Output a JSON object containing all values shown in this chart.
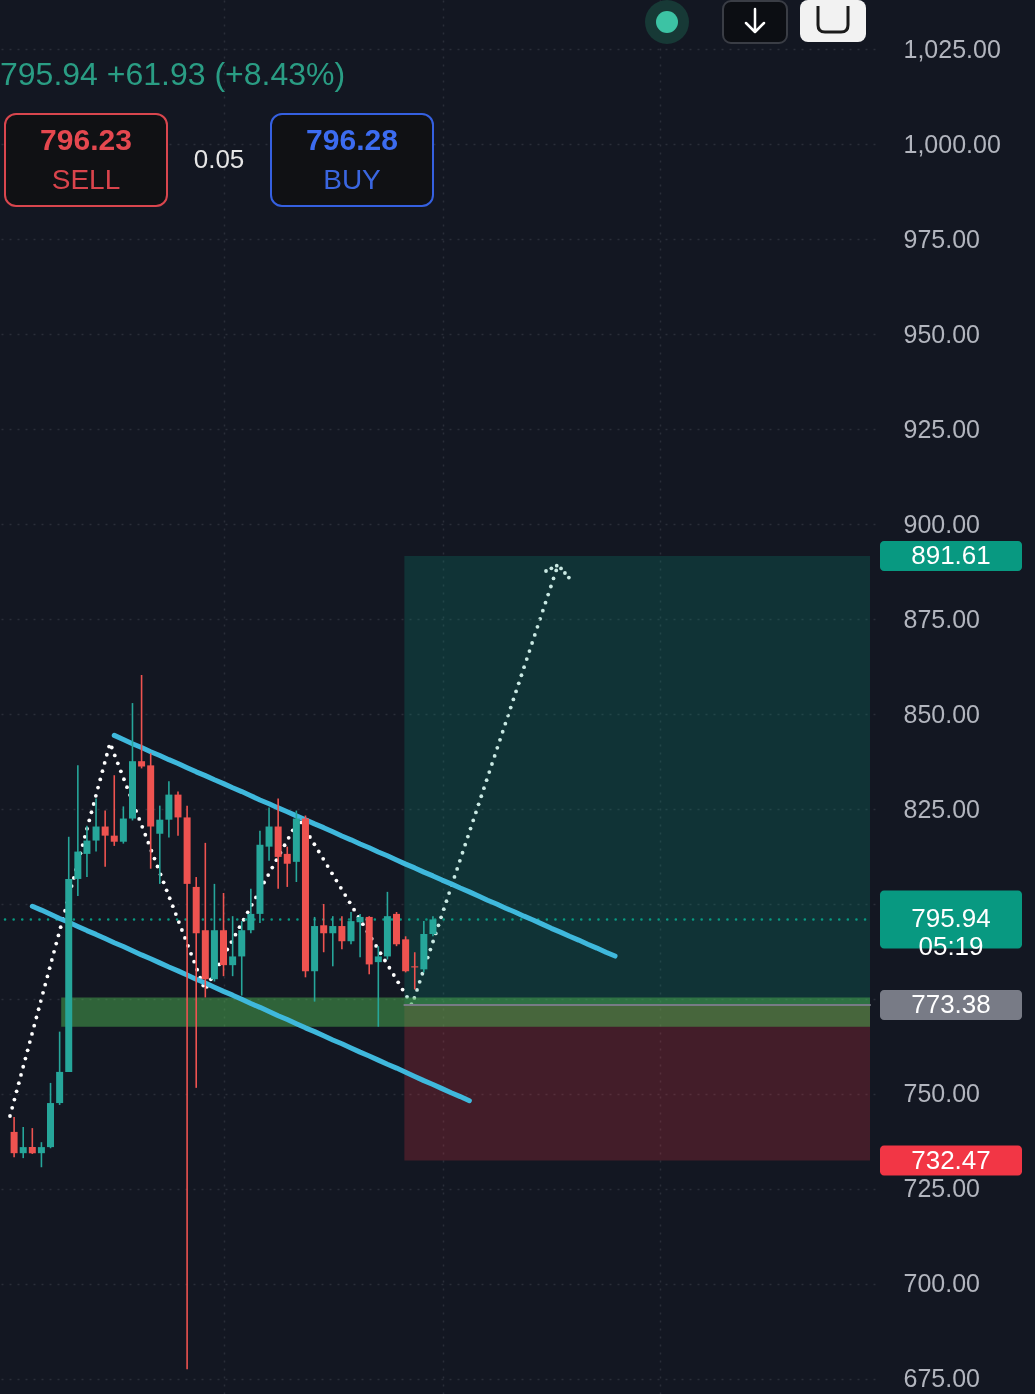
{
  "chart_data": {
    "type": "candlestick",
    "categories": [
      null,
      null,
      null,
      null,
      null,
      null,
      null,
      null,
      null,
      null,
      null,
      null,
      null,
      null,
      null,
      null,
      null,
      null,
      null,
      null,
      null,
      null,
      null,
      null,
      null,
      null,
      null,
      null,
      null,
      null,
      null,
      null,
      null,
      null,
      null,
      null,
      null,
      null,
      null,
      null,
      null,
      null,
      null,
      null,
      null,
      null,
      null,
      null,
      null,
      null,
      null,
      null,
      null,
      null,
      null,
      null,
      null,
      null,
      null,
      null,
      null,
      null,
      null,
      null,
      null,
      null,
      null,
      null,
      null,
      null,
      null,
      null,
      null,
      null,
      null,
      null,
      null,
      null,
      null,
      null,
      null,
      null,
      null,
      null,
      null,
      null,
      null,
      null,
      null,
      null,
      null,
      null,
      null,
      null
    ],
    "ohlc": [
      [
        740.0,
        743.9,
        733.3,
        734.4
      ],
      [
        734.4,
        741.3,
        733.1,
        736.0
      ],
      [
        736.0,
        741.0,
        734.2,
        734.4
      ],
      [
        734.4,
        737.3,
        730.7,
        736.0
      ],
      [
        736.0,
        752.9,
        735.7,
        747.6
      ],
      [
        747.6,
        766.4,
        747.1,
        755.8
      ],
      [
        755.8,
        817.7,
        755.8,
        806.6
      ],
      [
        806.6,
        836.5,
        802.1,
        813.8
      ],
      [
        813.2,
        820.6,
        807.1,
        816.7
      ],
      [
        816.7,
        827.8,
        813.8,
        820.4
      ],
      [
        820.4,
        824.6,
        809.8,
        818.0
      ],
      [
        818.0,
        833.9,
        815.3,
        816.4
      ],
      [
        816.4,
        825.7,
        815.9,
        822.5
      ],
      [
        822.5,
        852.9,
        822.0,
        837.6
      ],
      [
        837.6,
        860.3,
        835.7,
        836.2
      ],
      [
        836.5,
        839.7,
        809.3,
        820.4
      ],
      [
        818.5,
        825.9,
        805.3,
        822.2
      ],
      [
        822.2,
        832.3,
        817.5,
        828.8
      ],
      [
        828.8,
        829.6,
        818.0,
        822.8
      ],
      [
        822.8,
        825.9,
        677.5,
        805.3
      ],
      [
        804.5,
        807.1,
        751.6,
        792.3
      ],
      [
        793.1,
        816.1,
        775.4,
        780.2
      ],
      [
        780.2,
        805.3,
        779.6,
        793.1
      ],
      [
        793.1,
        802.9,
        781.0,
        783.9
      ],
      [
        783.9,
        796.8,
        781.0,
        786.2
      ],
      [
        786.2,
        795.5,
        775.9,
        793.1
      ],
      [
        793.1,
        804.0,
        792.3,
        797.4
      ],
      [
        797.4,
        819.3,
        795.0,
        815.6
      ],
      [
        815.1,
        825.4,
        811.4,
        820.4
      ],
      [
        820.4,
        827.8,
        804.0,
        812.4
      ],
      [
        813.2,
        815.1,
        804.5,
        810.6
      ],
      [
        811.1,
        824.6,
        805.8,
        822.5
      ],
      [
        822.5,
        823.3,
        780.7,
        782.3
      ],
      [
        782.3,
        796.6,
        774.3,
        794.2
      ],
      [
        794.4,
        800.0,
        787.3,
        792.3
      ],
      [
        792.3,
        796.8,
        783.6,
        794.2
      ],
      [
        794.2,
        796.8,
        788.1,
        790.2
      ],
      [
        790.2,
        797.9,
        789.4,
        795.5
      ],
      [
        795.2,
        797.4,
        786.0,
        796.6
      ],
      [
        796.6,
        796.8,
        781.5,
        784.1
      ],
      [
        784.7,
        788.9,
        767.7,
        786.2
      ],
      [
        786.2,
        803.2,
        785.4,
        796.8
      ],
      [
        797.4,
        797.9,
        788.9,
        789.4
      ],
      [
        790.7,
        791.5,
        782.0,
        782.3
      ],
      [
        783.6,
        787.3,
        777.5,
        783.3
      ],
      [
        782.8,
        795.5,
        782.0,
        792.1
      ],
      [
        792.1,
        796.8,
        791.5,
        795.94
      ],
      null,
      null,
      null,
      null,
      null,
      null,
      null,
      null,
      null,
      null,
      null,
      null,
      null,
      null,
      null,
      null,
      null,
      null,
      null,
      null,
      null,
      null,
      null,
      null,
      null,
      null,
      null,
      null,
      null,
      null,
      null,
      null,
      null,
      null,
      null,
      null,
      null,
      null,
      null,
      null,
      null,
      null,
      null,
      null,
      null,
      null,
      null
    ],
    "colors": [
      "#ef5350",
      "#26a69a",
      "#ef5350",
      "#26a69a",
      "#26a69a",
      "#26a69a",
      "#26a69a",
      "#26a69a",
      "#26a69a",
      "#26a69a",
      "#ef5350",
      "#ef5350",
      "#26a69a",
      "#26a69a",
      "#ef5350",
      "#ef5350",
      "#26a69a",
      "#26a69a",
      "#ef5350",
      "#ef5350",
      "#ef5350",
      "#ef5350",
      "#26a69a",
      "#ef5350",
      "#26a69a",
      "#26a69a",
      "#26a69a",
      "#26a69a",
      "#26a69a",
      "#ef5350",
      "#ef5350",
      "#26a69a",
      "#ef5350",
      "#26a69a",
      "#ef5350",
      "#26a69a",
      "#ef5350",
      "#26a69a",
      "#26a69a",
      "#ef5350",
      "#26a69a",
      "#26a69a",
      "#ef5350",
      "#ef5350",
      "#ef5350",
      "#26a69a",
      "#26a69a",
      null,
      null,
      null,
      null,
      null,
      null,
      null,
      null,
      null,
      null,
      null,
      null,
      null,
      null,
      null,
      null,
      null,
      null,
      null,
      null,
      null,
      null,
      null,
      null,
      null,
      null,
      null,
      null,
      null,
      null,
      null,
      null,
      null,
      null,
      null,
      null,
      null,
      null,
      null,
      null,
      null,
      null,
      null,
      null,
      null,
      null,
      null
    ],
    "series": [
      {
        "type": "line",
        "color": "#3fb8dc",
        "values": [
          null,
          null,
          null,
          null,
          null,
          null,
          null,
          null,
          null,
          null,
          null,
          844.4,
          843.3,
          842.2,
          841.2,
          840.1,
          839.1,
          838.0,
          837.0,
          835.9,
          834.8,
          833.8,
          832.7,
          831.7,
          830.6,
          829.6,
          828.5,
          827.4,
          826.4,
          825.3,
          824.3,
          823.2,
          822.2,
          821.1,
          820.1,
          819.0,
          817.9,
          816.9,
          815.8,
          814.8,
          813.7,
          812.7,
          811.6,
          810.5,
          809.5,
          808.4,
          807.4,
          806.3,
          805.3,
          804.2,
          803.2,
          802.1,
          801.0,
          800.0,
          798.9,
          797.9,
          796.8,
          795.8,
          794.7,
          793.6,
          792.6,
          791.5,
          790.5,
          789.4,
          788.4,
          787.3,
          786.3,
          null,
          null,
          null,
          null,
          null,
          null,
          null,
          null,
          null,
          null,
          null,
          null,
          null,
          null,
          null,
          null,
          null,
          null,
          null,
          null,
          null,
          null,
          null,
          null,
          null,
          null,
          null
        ]
      },
      {
        "type": "line",
        "color": "#3fb8dc",
        "values": [
          null,
          null,
          799.4,
          798.4,
          797.3,
          796.2,
          795.2,
          794.1,
          793.0,
          792.0,
          790.9,
          789.8,
          788.8,
          787.7,
          786.6,
          785.6,
          784.5,
          783.4,
          782.4,
          781.3,
          780.2,
          779.2,
          778.1,
          777.0,
          776.0,
          774.9,
          773.8,
          772.8,
          771.7,
          770.6,
          769.6,
          768.5,
          767.4,
          766.4,
          765.3,
          764.2,
          763.2,
          762.1,
          761.0,
          760.0,
          758.9,
          757.8,
          756.8,
          755.7,
          754.6,
          753.5,
          752.5,
          751.4,
          750.3,
          749.3,
          748.2,
          null,
          null,
          null,
          null,
          null,
          null,
          null,
          null,
          null,
          null,
          null,
          null,
          null,
          null,
          null,
          null,
          null,
          null,
          null,
          null,
          null,
          null,
          null,
          null,
          null,
          null,
          null,
          null,
          null,
          null,
          null,
          null,
          null,
          null,
          null,
          null,
          null,
          null,
          null,
          null,
          null,
          null,
          null
        ]
      }
    ],
    "ylim": [
      671,
      1038
    ],
    "yticks": [
      {
        "value": 675,
        "label": "675.00"
      },
      {
        "value": 700,
        "label": "700.00"
      },
      {
        "value": 725,
        "label": "725.00"
      },
      {
        "value": 750,
        "label": "750.00"
      },
      {
        "value": 775,
        "label": null
      },
      {
        "value": 800,
        "label": null
      },
      {
        "value": 825,
        "label": "825.00"
      },
      {
        "value": 850,
        "label": "850.00"
      },
      {
        "value": 875,
        "label": "875.00"
      },
      {
        "value": 900,
        "label": "900.00"
      },
      {
        "value": 925,
        "label": "925.00"
      },
      {
        "value": 950,
        "label": "950.00"
      },
      {
        "value": 975,
        "label": "975.00"
      },
      {
        "value": 1000,
        "label": "1,000.00"
      },
      {
        "value": 1025,
        "label": "1,025.00"
      }
    ],
    "grid": true,
    "ref_lines": [
      {
        "axis": "y",
        "value": 795.94,
        "label": "795.94\n05:19",
        "color": "#089981",
        "line_style": "dotted"
      },
      {
        "axis": "y",
        "value": 773.38,
        "label": "773.38",
        "color": "#787b86"
      }
    ],
    "bands": [
      {
        "axis": "y",
        "from": 773.38,
        "to": 891.61,
        "label": "891.61",
        "color": "#089981"
      },
      {
        "axis": "y",
        "from": 773.38,
        "to": 732.47,
        "label": "732.47",
        "color": "#f23645"
      },
      {
        "axis": "y",
        "from": 767.7,
        "to": 775.4,
        "color": "#4caf50"
      }
    ],
    "annotations": [
      "795.94 +61.93 (+8.43%)",
      "796.23",
      "SELL",
      "0.05",
      "796.28",
      "BUY"
    ]
  }
}
